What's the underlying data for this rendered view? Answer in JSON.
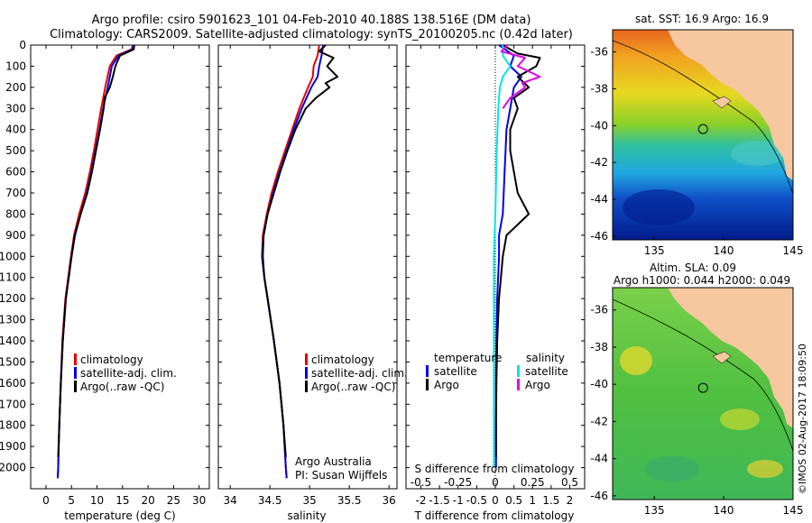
{
  "header": {
    "line1": "Argo profile: csiro 5901623_101 04-Feb-2010 40.188S 138.516E (DM data)",
    "line2": "Climatology: CARS2009. Satellite-adjusted climatology: synTS_20100205.nc (0.42d later)"
  },
  "footer_credit": "©IMOS 02-Aug-2017 18:09:50",
  "colors": {
    "climatology": "#e60000",
    "satellite": "#0000e6",
    "argo": "#000000",
    "salinity_satellite": "#00e6e6",
    "salinity_argo": "#e600e6",
    "land": "#f7c7a0"
  },
  "chart_data": [
    {
      "type": "line",
      "panel": "temperature",
      "xlabel": "temperature (deg C)",
      "xticks": [
        "0",
        "5",
        "10",
        "15",
        "20",
        "25",
        "30"
      ],
      "xlim": [
        -3,
        32
      ],
      "ylim": [
        0,
        2100
      ],
      "yreversed": true,
      "yticks": [
        "0",
        "100",
        "200",
        "300",
        "400",
        "500",
        "600",
        "700",
        "800",
        "900",
        "1000",
        "1100",
        "1200",
        "1300",
        "1400",
        "1500",
        "1600",
        "1700",
        "1800",
        "1900",
        "2000"
      ],
      "legend": [
        "climatology",
        "satellite-adj. clim.",
        "Argo(..raw -QC)"
      ],
      "series": [
        {
          "name": "climatology",
          "color": "#e60000",
          "depth": [
            0,
            20,
            50,
            100,
            200,
            300,
            400,
            500,
            600,
            700,
            800,
            900,
            1000,
            1200,
            1400,
            1600,
            1800,
            2000,
            2050
          ],
          "values": [
            17,
            16.8,
            13.8,
            12.5,
            11.6,
            10.8,
            10.1,
            9.4,
            8.6,
            7.7,
            6.5,
            5.5,
            4.9,
            3.8,
            3.2,
            2.9,
            2.6,
            2.4,
            2.3
          ]
        },
        {
          "name": "satellite-adj. clim.",
          "color": "#0000e6",
          "depth": [
            0,
            20,
            50,
            100,
            200,
            300,
            400,
            500,
            600,
            700,
            800,
            900,
            1000,
            1200,
            1400,
            1600,
            1800,
            2000,
            2050
          ],
          "values": [
            17.1,
            17,
            14.2,
            12.9,
            12.1,
            11.2,
            10.5,
            9.7,
            8.9,
            8,
            6.8,
            5.7,
            5,
            3.9,
            3.3,
            2.9,
            2.6,
            2.4,
            2.3
          ]
        },
        {
          "name": "Argo(..raw -QC)",
          "color": "#000000",
          "depth": [
            0,
            20,
            50,
            100,
            150,
            200,
            250,
            300,
            400,
            500,
            600,
            700,
            800,
            900,
            1000,
            1200,
            1400,
            1600,
            1800,
            1950
          ],
          "values": [
            17.3,
            17.2,
            14.5,
            13.6,
            13.1,
            12.5,
            11.5,
            11.3,
            10.6,
            9.8,
            9,
            8.1,
            6.8,
            5.6,
            5,
            3.9,
            3.3,
            2.9,
            2.6,
            2.4
          ]
        }
      ]
    },
    {
      "type": "line",
      "panel": "salinity",
      "xlabel": "salinity",
      "xticks": [
        "34",
        "34.5",
        "35",
        "35.5",
        "36"
      ],
      "xlim": [
        33.85,
        36.1
      ],
      "ylim": [
        0,
        2100
      ],
      "yreversed": true,
      "legend": [
        "climatology",
        "satellite-adj. clim.",
        "Argo(..raw -QC)"
      ],
      "annotations": [
        "Argo Australia",
        "PI: Susan Wijffels"
      ],
      "series": [
        {
          "name": "climatology",
          "color": "#e60000",
          "depth": [
            0,
            50,
            100,
            150,
            200,
            300,
            400,
            500,
            600,
            700,
            800,
            900,
            1000,
            1100,
            1200,
            1400,
            1600,
            1800,
            2000,
            2050
          ],
          "values": [
            35.12,
            35.1,
            35.05,
            35.04,
            34.98,
            34.87,
            34.78,
            34.69,
            34.6,
            34.52,
            34.46,
            34.41,
            34.4,
            34.43,
            34.47,
            34.55,
            34.62,
            34.67,
            34.7,
            34.71
          ]
        },
        {
          "name": "satellite-adj. clim.",
          "color": "#0000e6",
          "depth": [
            0,
            50,
            100,
            150,
            200,
            300,
            400,
            500,
            600,
            700,
            800,
            900,
            1000,
            1100,
            1200,
            1400,
            1600,
            1800,
            2000,
            2050
          ],
          "values": [
            35.17,
            35.15,
            35.12,
            35.1,
            35.02,
            34.9,
            34.8,
            34.71,
            34.62,
            34.54,
            34.47,
            34.42,
            34.4,
            34.43,
            34.47,
            34.55,
            34.62,
            34.67,
            34.7,
            34.71
          ]
        },
        {
          "name": "Argo(..raw -QC)",
          "color": "#000000",
          "depth": [
            0,
            30,
            60,
            100,
            150,
            180,
            200,
            250,
            300,
            400,
            500,
            600,
            700,
            800,
            900,
            1000,
            1100,
            1200,
            1400,
            1600,
            1800,
            1950
          ],
          "values": [
            35.2,
            35.12,
            35.3,
            35.22,
            35.35,
            35.2,
            35.25,
            35.08,
            34.95,
            34.82,
            34.72,
            34.63,
            34.55,
            34.47,
            34.42,
            34.41,
            34.43,
            34.47,
            34.55,
            34.62,
            34.67,
            34.7
          ]
        }
      ]
    },
    {
      "type": "line",
      "panel": "difference",
      "xlabel": "T difference from climatology",
      "xticks": [
        "-2",
        "-1.5",
        "-1",
        "-0.5",
        "0",
        "0.5",
        "1",
        "1.5",
        "2"
      ],
      "xlim": [
        -2.4,
        2.4
      ],
      "secondary_xlabel": "S difference from climatology",
      "secondary_xticks": [
        "-0.5",
        "-0.25",
        "0",
        "0.25",
        "0.5"
      ],
      "ylim": [
        0,
        2100
      ],
      "yreversed": true,
      "legend_headers": [
        "temperature",
        "salinity"
      ],
      "legend": [
        "satellite",
        "Argo",
        "satellite",
        "Argo"
      ],
      "series": [
        {
          "name": "temperature satellite",
          "color": "#0000e6",
          "depth": [
            0,
            50,
            100,
            150,
            200,
            300,
            400,
            600,
            800,
            900,
            1000,
            1200,
            1400,
            1600,
            1800,
            2000
          ],
          "values": [
            0.1,
            0.5,
            0.4,
            0.7,
            0.5,
            0.4,
            0.3,
            0.25,
            0.2,
            0.1,
            0.1,
            0.05,
            0.03,
            0.02,
            0.02,
            0.02
          ]
        },
        {
          "name": "temperature Argo",
          "color": "#000000",
          "depth": [
            0,
            40,
            60,
            100,
            150,
            200,
            250,
            300,
            400,
            500,
            600,
            700,
            800,
            900,
            1000,
            1200,
            1400,
            1600,
            1800,
            1950
          ],
          "values": [
            0.2,
            0.6,
            1.2,
            1.1,
            0.6,
            0.9,
            0.5,
            0.6,
            0.4,
            0.4,
            0.5,
            0.6,
            0.9,
            0.3,
            0.2,
            0.1,
            0.05,
            0.03,
            0.02,
            0.02
          ]
        },
        {
          "name": "salinity satellite",
          "color": "#00e6e6",
          "depth": [
            0,
            50,
            100,
            150,
            200,
            300,
            500,
            800,
            1000,
            1400,
            1800,
            2000
          ],
          "values": [
            0.05,
            0.05,
            0.1,
            0.05,
            0.03,
            0.02,
            0.01,
            0.0,
            -0.01,
            -0.01,
            -0.01,
            -0.01
          ]
        },
        {
          "name": "salinity Argo",
          "color": "#e600e6",
          "depth": [
            0,
            30,
            60,
            100,
            150,
            180,
            200,
            250,
            300
          ],
          "values": [
            0.08,
            0.04,
            0.2,
            0.15,
            0.3,
            0.18,
            0.2,
            0.1,
            0.05
          ]
        }
      ]
    },
    {
      "type": "heatmap",
      "panel": "sst_map",
      "title": "sat. SST: 16.9 Argo: 16.9",
      "xticks": [
        "135",
        "140",
        "145"
      ],
      "yticks": [
        "-36",
        "-38",
        "-40",
        "-42",
        "-44",
        "-46"
      ],
      "xlim": [
        132,
        145
      ],
      "ylim": [
        -46.2,
        -34.8
      ],
      "marker": {
        "lon": 138.516,
        "lat": -40.188
      }
    },
    {
      "type": "heatmap",
      "panel": "sla_map",
      "title": "Altim. SLA: 0.09",
      "subtitle": "Argo h1000: 0.044 h2000: 0.049",
      "xticks": [
        "135",
        "140",
        "145"
      ],
      "yticks": [
        "-36",
        "-38",
        "-40",
        "-42",
        "-44",
        "-46"
      ],
      "xlim": [
        132,
        145
      ],
      "ylim": [
        -46.2,
        -34.8
      ],
      "marker": {
        "lon": 138.516,
        "lat": -40.188
      }
    }
  ]
}
